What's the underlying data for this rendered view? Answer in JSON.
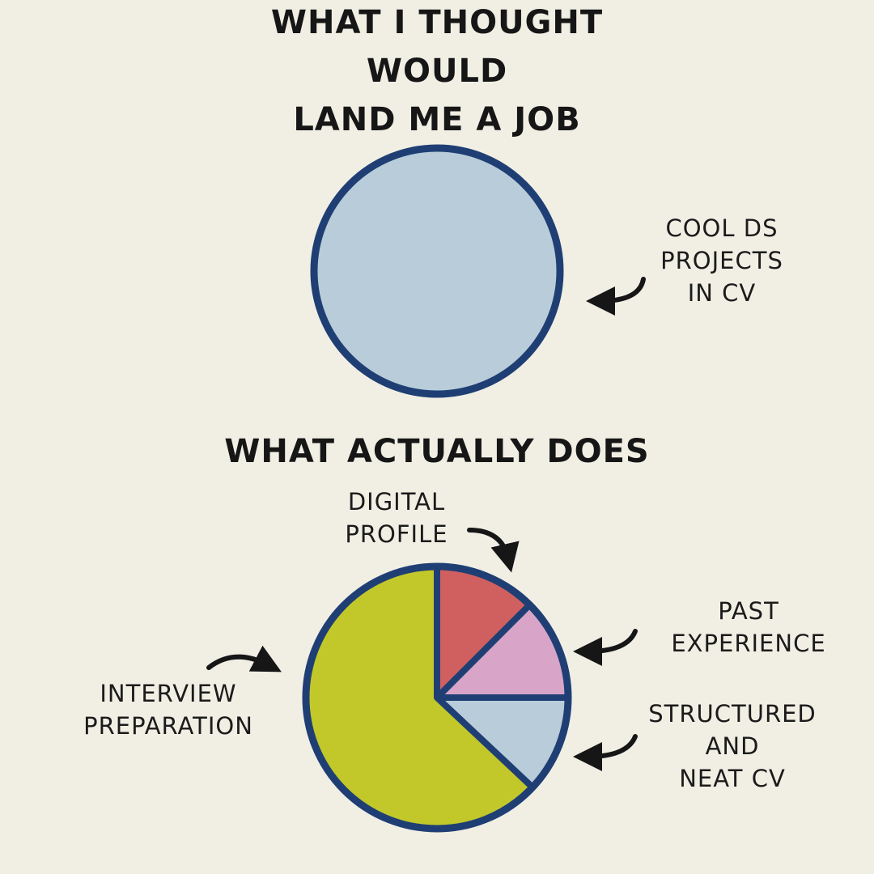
{
  "chart_data": [
    {
      "type": "pie",
      "title": "WHAT I THOUGHT WOULD\nLAND ME A JOB",
      "categories": [
        "COOL DS PROJECTS\nIN CV"
      ],
      "values": [
        100
      ],
      "colors": [
        "#b8cdd9"
      ]
    },
    {
      "type": "pie",
      "title": "WHAT ACTUALLY DOES",
      "categories": [
        "DIGITAL\nPROFILE",
        "PAST\nEXPERIENCE",
        "STRUCTURED\nAND\nNEAT CV",
        "INTERVIEW\nPREPARATION"
      ],
      "values": [
        12.5,
        12.5,
        12,
        63
      ],
      "colors": [
        "#d06060",
        "#d8a4c8",
        "#b8cdd9",
        "#c2c82a"
      ]
    }
  ]
}
